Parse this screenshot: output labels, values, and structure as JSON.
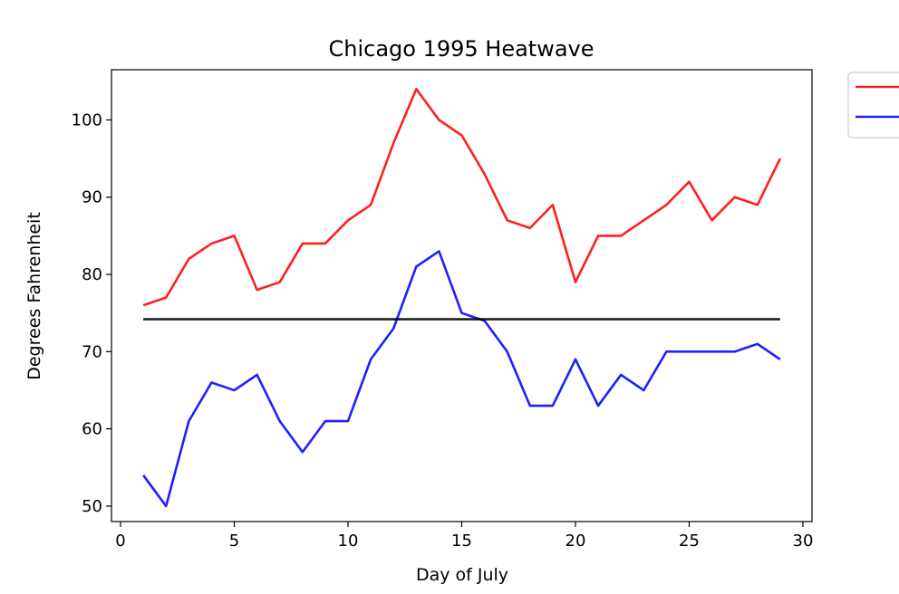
{
  "chart_data": {
    "type": "line",
    "title": "Chicago 1995 Heatwave",
    "xlabel": "Day of July",
    "ylabel": "Degrees Fahrenheit",
    "xlim": [
      -0.4,
      30.4
    ],
    "ylim": [
      48,
      106.5
    ],
    "xticks": [
      0,
      5,
      10,
      15,
      20,
      25,
      30
    ],
    "yticks": [
      50,
      60,
      70,
      80,
      90,
      100
    ],
    "grid": false,
    "legend": {
      "placement": "upper-right-outside",
      "entries": [
        {
          "color": "#ff0000",
          "label": ""
        },
        {
          "color": "#0000ff",
          "label": ""
        }
      ]
    },
    "series": [
      {
        "color": "#ff0000",
        "x": [
          1,
          2,
          3,
          4,
          5,
          6,
          7,
          8,
          9,
          10,
          11,
          12,
          13,
          14,
          15,
          16,
          17,
          18,
          19,
          20,
          21,
          22,
          23,
          24,
          25,
          26,
          27,
          28,
          29
        ],
        "y": [
          76,
          77,
          82,
          84,
          85,
          78,
          79,
          84,
          84,
          87,
          89,
          97,
          104,
          100,
          98,
          93,
          87,
          86,
          89,
          79,
          85,
          85,
          87,
          89,
          92,
          87,
          90,
          89,
          95
        ]
      },
      {
        "color": "#0000ff",
        "x": [
          1,
          2,
          3,
          4,
          5,
          6,
          7,
          8,
          9,
          10,
          11,
          12,
          13,
          14,
          15,
          16,
          17,
          18,
          19,
          20,
          21,
          22,
          23,
          24,
          25,
          26,
          27,
          28,
          29
        ],
        "y": [
          54,
          50,
          61,
          66,
          65,
          67,
          61,
          57,
          61,
          61,
          69,
          73,
          81,
          83,
          75,
          74,
          70,
          63,
          63,
          69,
          63,
          67,
          65,
          70,
          70,
          70,
          70,
          71,
          69
        ]
      },
      {
        "color": "#000000",
        "x": [
          1,
          29
        ],
        "y": [
          74.2,
          74.2
        ]
      }
    ]
  }
}
